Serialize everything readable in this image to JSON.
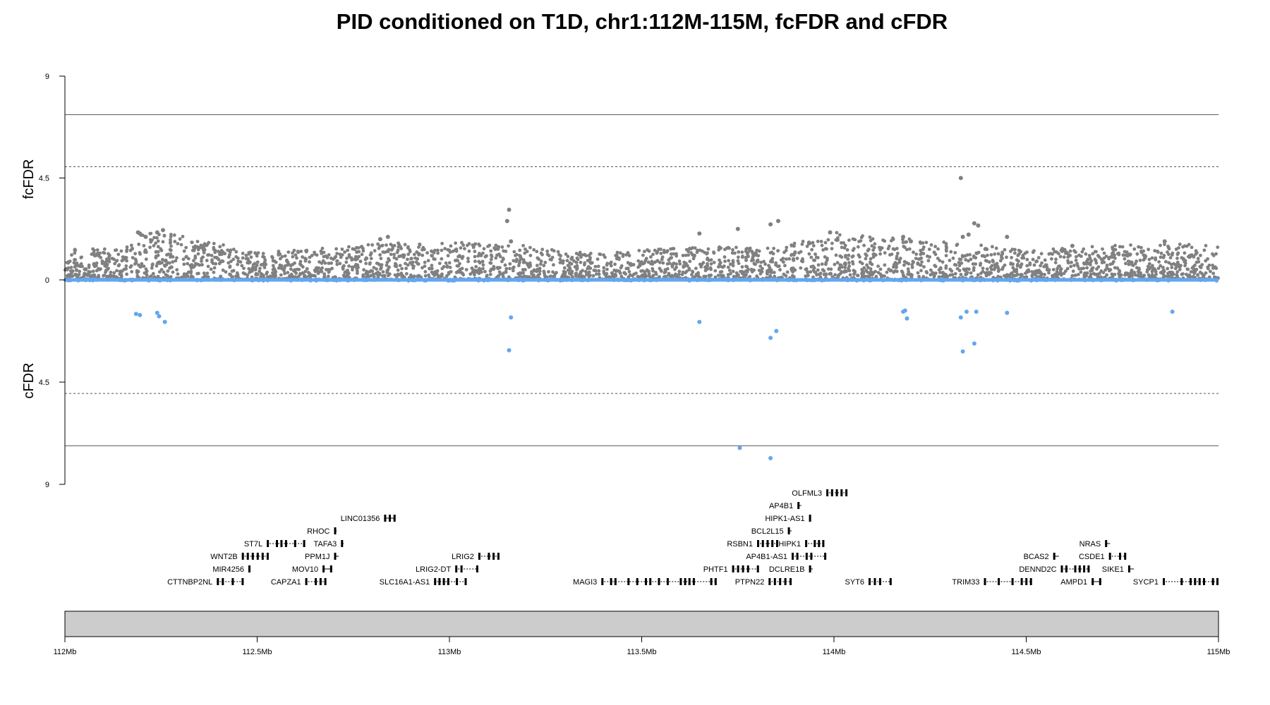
{
  "colors": {
    "fcfdr_points": "#808080",
    "cfdr_points": "#64a6ee",
    "lines": "#000000",
    "ideogram": "#cccccc"
  },
  "chart_data": {
    "type": "scatter",
    "title": "PID conditioned on T1D, chr1:112M-115M, fcFDR and cFDR",
    "xlim": [
      112000000,
      115000000
    ],
    "x_ticks": [
      {
        "value": 112000000,
        "label": "112Mb"
      },
      {
        "value": 112500000,
        "label": "112.5Mb"
      },
      {
        "value": 113000000,
        "label": "113Mb"
      },
      {
        "value": 113500000,
        "label": "113.5Mb"
      },
      {
        "value": 114000000,
        "label": "114Mb"
      },
      {
        "value": 114500000,
        "label": "114.5Mb"
      },
      {
        "value": 115000000,
        "label": "115Mb"
      }
    ],
    "top_panel": {
      "ylabel": "fcFDR",
      "ylim": [
        0,
        9
      ],
      "y_ticks": [
        {
          "value": 0,
          "label": "0"
        },
        {
          "value": 4.5,
          "label": "4.5"
        },
        {
          "value": 9,
          "label": "9"
        }
      ],
      "solid_line": 7.3,
      "dashed_line": 5
    },
    "bottom_panel": {
      "ylabel": "cFDR",
      "ylim": [
        0,
        9
      ],
      "y_ticks": [
        {
          "value": 4.5,
          "label": "4.5"
        },
        {
          "value": 9,
          "label": "9"
        }
      ],
      "solid_line": 7.3,
      "dashed_line": 5
    },
    "background_density": {
      "anchors_mb": [
        112.0,
        112.15,
        112.2,
        112.25,
        112.5,
        112.9,
        113.15,
        113.35,
        113.6,
        113.75,
        113.85,
        114.0,
        114.2,
        114.35,
        114.5,
        114.8,
        115.0
      ],
      "max_top": [
        1.5,
        1.3,
        2.1,
        2.2,
        1.2,
        1.7,
        1.6,
        1.2,
        1.4,
        1.5,
        1.4,
        2.1,
        1.8,
        1.6,
        1.3,
        1.6,
        1.6
      ]
    },
    "series": [
      {
        "name": "fcFDR",
        "panel": "top",
        "color": "#808080",
        "points": [
          [
            112190000,
            2.1
          ],
          [
            112195000,
            2.05
          ],
          [
            112240000,
            2.1
          ],
          [
            112255000,
            2.2
          ],
          [
            112210000,
            1.9
          ],
          [
            112820000,
            1.8
          ],
          [
            112840000,
            1.9
          ],
          [
            113155000,
            3.1
          ],
          [
            113150000,
            2.6
          ],
          [
            113160000,
            1.7
          ],
          [
            113650000,
            2.05
          ],
          [
            113750000,
            2.25
          ],
          [
            113835000,
            2.45
          ],
          [
            113855000,
            2.6
          ],
          [
            113990000,
            2.1
          ],
          [
            114180000,
            1.9
          ],
          [
            114200000,
            1.7
          ],
          [
            114330000,
            4.5
          ],
          [
            114335000,
            1.9
          ],
          [
            114350000,
            2.0
          ],
          [
            114365000,
            2.5
          ],
          [
            114375000,
            2.4
          ],
          [
            114450000,
            1.9
          ],
          [
            114620000,
            1.5
          ],
          [
            114860000,
            1.7
          ]
        ]
      },
      {
        "name": "cFDR",
        "panel": "bottom",
        "color": "#64a6ee",
        "points": [
          [
            112185000,
            1.5
          ],
          [
            112195000,
            1.55
          ],
          [
            112240000,
            1.45
          ],
          [
            112245000,
            1.6
          ],
          [
            112260000,
            1.85
          ],
          [
            113160000,
            1.65
          ],
          [
            113155000,
            3.1
          ],
          [
            113650000,
            1.85
          ],
          [
            113755000,
            7.4
          ],
          [
            113835000,
            2.55
          ],
          [
            113835000,
            7.85
          ],
          [
            113850000,
            2.25
          ],
          [
            114180000,
            1.4
          ],
          [
            114185000,
            1.35
          ],
          [
            114190000,
            1.7
          ],
          [
            114330000,
            1.65
          ],
          [
            114335000,
            3.15
          ],
          [
            114345000,
            1.4
          ],
          [
            114365000,
            2.8
          ],
          [
            114370000,
            1.4
          ],
          [
            114450000,
            1.45
          ],
          [
            114880000,
            1.4
          ]
        ]
      }
    ],
    "genes": [
      {
        "name": "OLFML3",
        "start": 113980000,
        "end": 114035000,
        "row": 7,
        "strand": "-"
      },
      {
        "name": "AP4B1",
        "start": 113905000,
        "end": 113915000,
        "row": 6,
        "strand": "+"
      },
      {
        "name": "HIPK1-AS1",
        "start": 113935000,
        "end": 113940000,
        "row": 5,
        "strand": "+"
      },
      {
        "name": "LINC01356",
        "start": 112830000,
        "end": 112860000,
        "row": 5,
        "strand": "+"
      },
      {
        "name": "RHOC",
        "start": 112700000,
        "end": 112707000,
        "row": 4,
        "strand": "+"
      },
      {
        "name": "BCL2L15",
        "start": 113880000,
        "end": 113890000,
        "row": 4,
        "strand": "+"
      },
      {
        "name": "ST7L",
        "start": 112525000,
        "end": 112625000,
        "row": 3,
        "strand": "-"
      },
      {
        "name": "TAFA3",
        "start": 112718000,
        "end": 112725000,
        "row": 3,
        "strand": "+"
      },
      {
        "name": "RSBN1",
        "start": 113800000,
        "end": 113855000,
        "row": 3,
        "strand": "-"
      },
      {
        "name": "HIPK1",
        "start": 113925000,
        "end": 113975000,
        "row": 3,
        "strand": "+"
      },
      {
        "name": "NRAS",
        "start": 114705000,
        "end": 114718000,
        "row": 3,
        "strand": "-"
      },
      {
        "name": "WNT2B",
        "start": 112460000,
        "end": 112530000,
        "row": 2,
        "strand": "+"
      },
      {
        "name": "PPM1J",
        "start": 112700000,
        "end": 112712000,
        "row": 2,
        "strand": "-"
      },
      {
        "name": "LRIG2",
        "start": 113075000,
        "end": 113130000,
        "row": 2,
        "strand": "+"
      },
      {
        "name": "AP4B1-AS1",
        "start": 113890000,
        "end": 113980000,
        "row": 2,
        "strand": "+"
      },
      {
        "name": "BCAS2",
        "start": 114570000,
        "end": 114585000,
        "row": 2,
        "strand": "-"
      },
      {
        "name": "CSDE1",
        "start": 114715000,
        "end": 114760000,
        "row": 2,
        "strand": "-"
      },
      {
        "name": "MIR4256",
        "start": 112477000,
        "end": 112479000,
        "row": 1,
        "strand": "+"
      },
      {
        "name": "MOV10",
        "start": 112670000,
        "end": 112695000,
        "row": 1,
        "strand": "+"
      },
      {
        "name": "LRIG2-DT",
        "start": 113015000,
        "end": 113075000,
        "row": 1,
        "strand": "-"
      },
      {
        "name": "PHTF1",
        "start": 113735000,
        "end": 113805000,
        "row": 1,
        "strand": "-"
      },
      {
        "name": "DCLRE1B",
        "start": 113935000,
        "end": 113945000,
        "row": 1,
        "strand": "+"
      },
      {
        "name": "DENND2C",
        "start": 114590000,
        "end": 114665000,
        "row": 1,
        "strand": "-"
      },
      {
        "name": "SIKE1",
        "start": 114765000,
        "end": 114780000,
        "row": 1,
        "strand": "-"
      },
      {
        "name": "CTTNBP2NL",
        "start": 112395000,
        "end": 112465000,
        "row": 0,
        "strand": "+"
      },
      {
        "name": "CAPZA1",
        "start": 112625000,
        "end": 112680000,
        "row": 0,
        "strand": "+"
      },
      {
        "name": "SLC16A1-AS1",
        "start": 112960000,
        "end": 113045000,
        "row": 0,
        "strand": "+"
      },
      {
        "name": "MAGI3",
        "start": 113395000,
        "end": 113695000,
        "row": 0,
        "strand": "+"
      },
      {
        "name": "PTPN22",
        "start": 113830000,
        "end": 113890000,
        "row": 0,
        "strand": "-"
      },
      {
        "name": "SYT6",
        "start": 114090000,
        "end": 114150000,
        "row": 0,
        "strand": "-"
      },
      {
        "name": "TRIM33",
        "start": 114390000,
        "end": 114515000,
        "row": 0,
        "strand": "-"
      },
      {
        "name": "AMPD1",
        "start": 114670000,
        "end": 114695000,
        "row": 0,
        "strand": "-"
      },
      {
        "name": "SYCP1",
        "start": 114855000,
        "end": 115000000,
        "row": 0,
        "strand": "+"
      }
    ]
  }
}
